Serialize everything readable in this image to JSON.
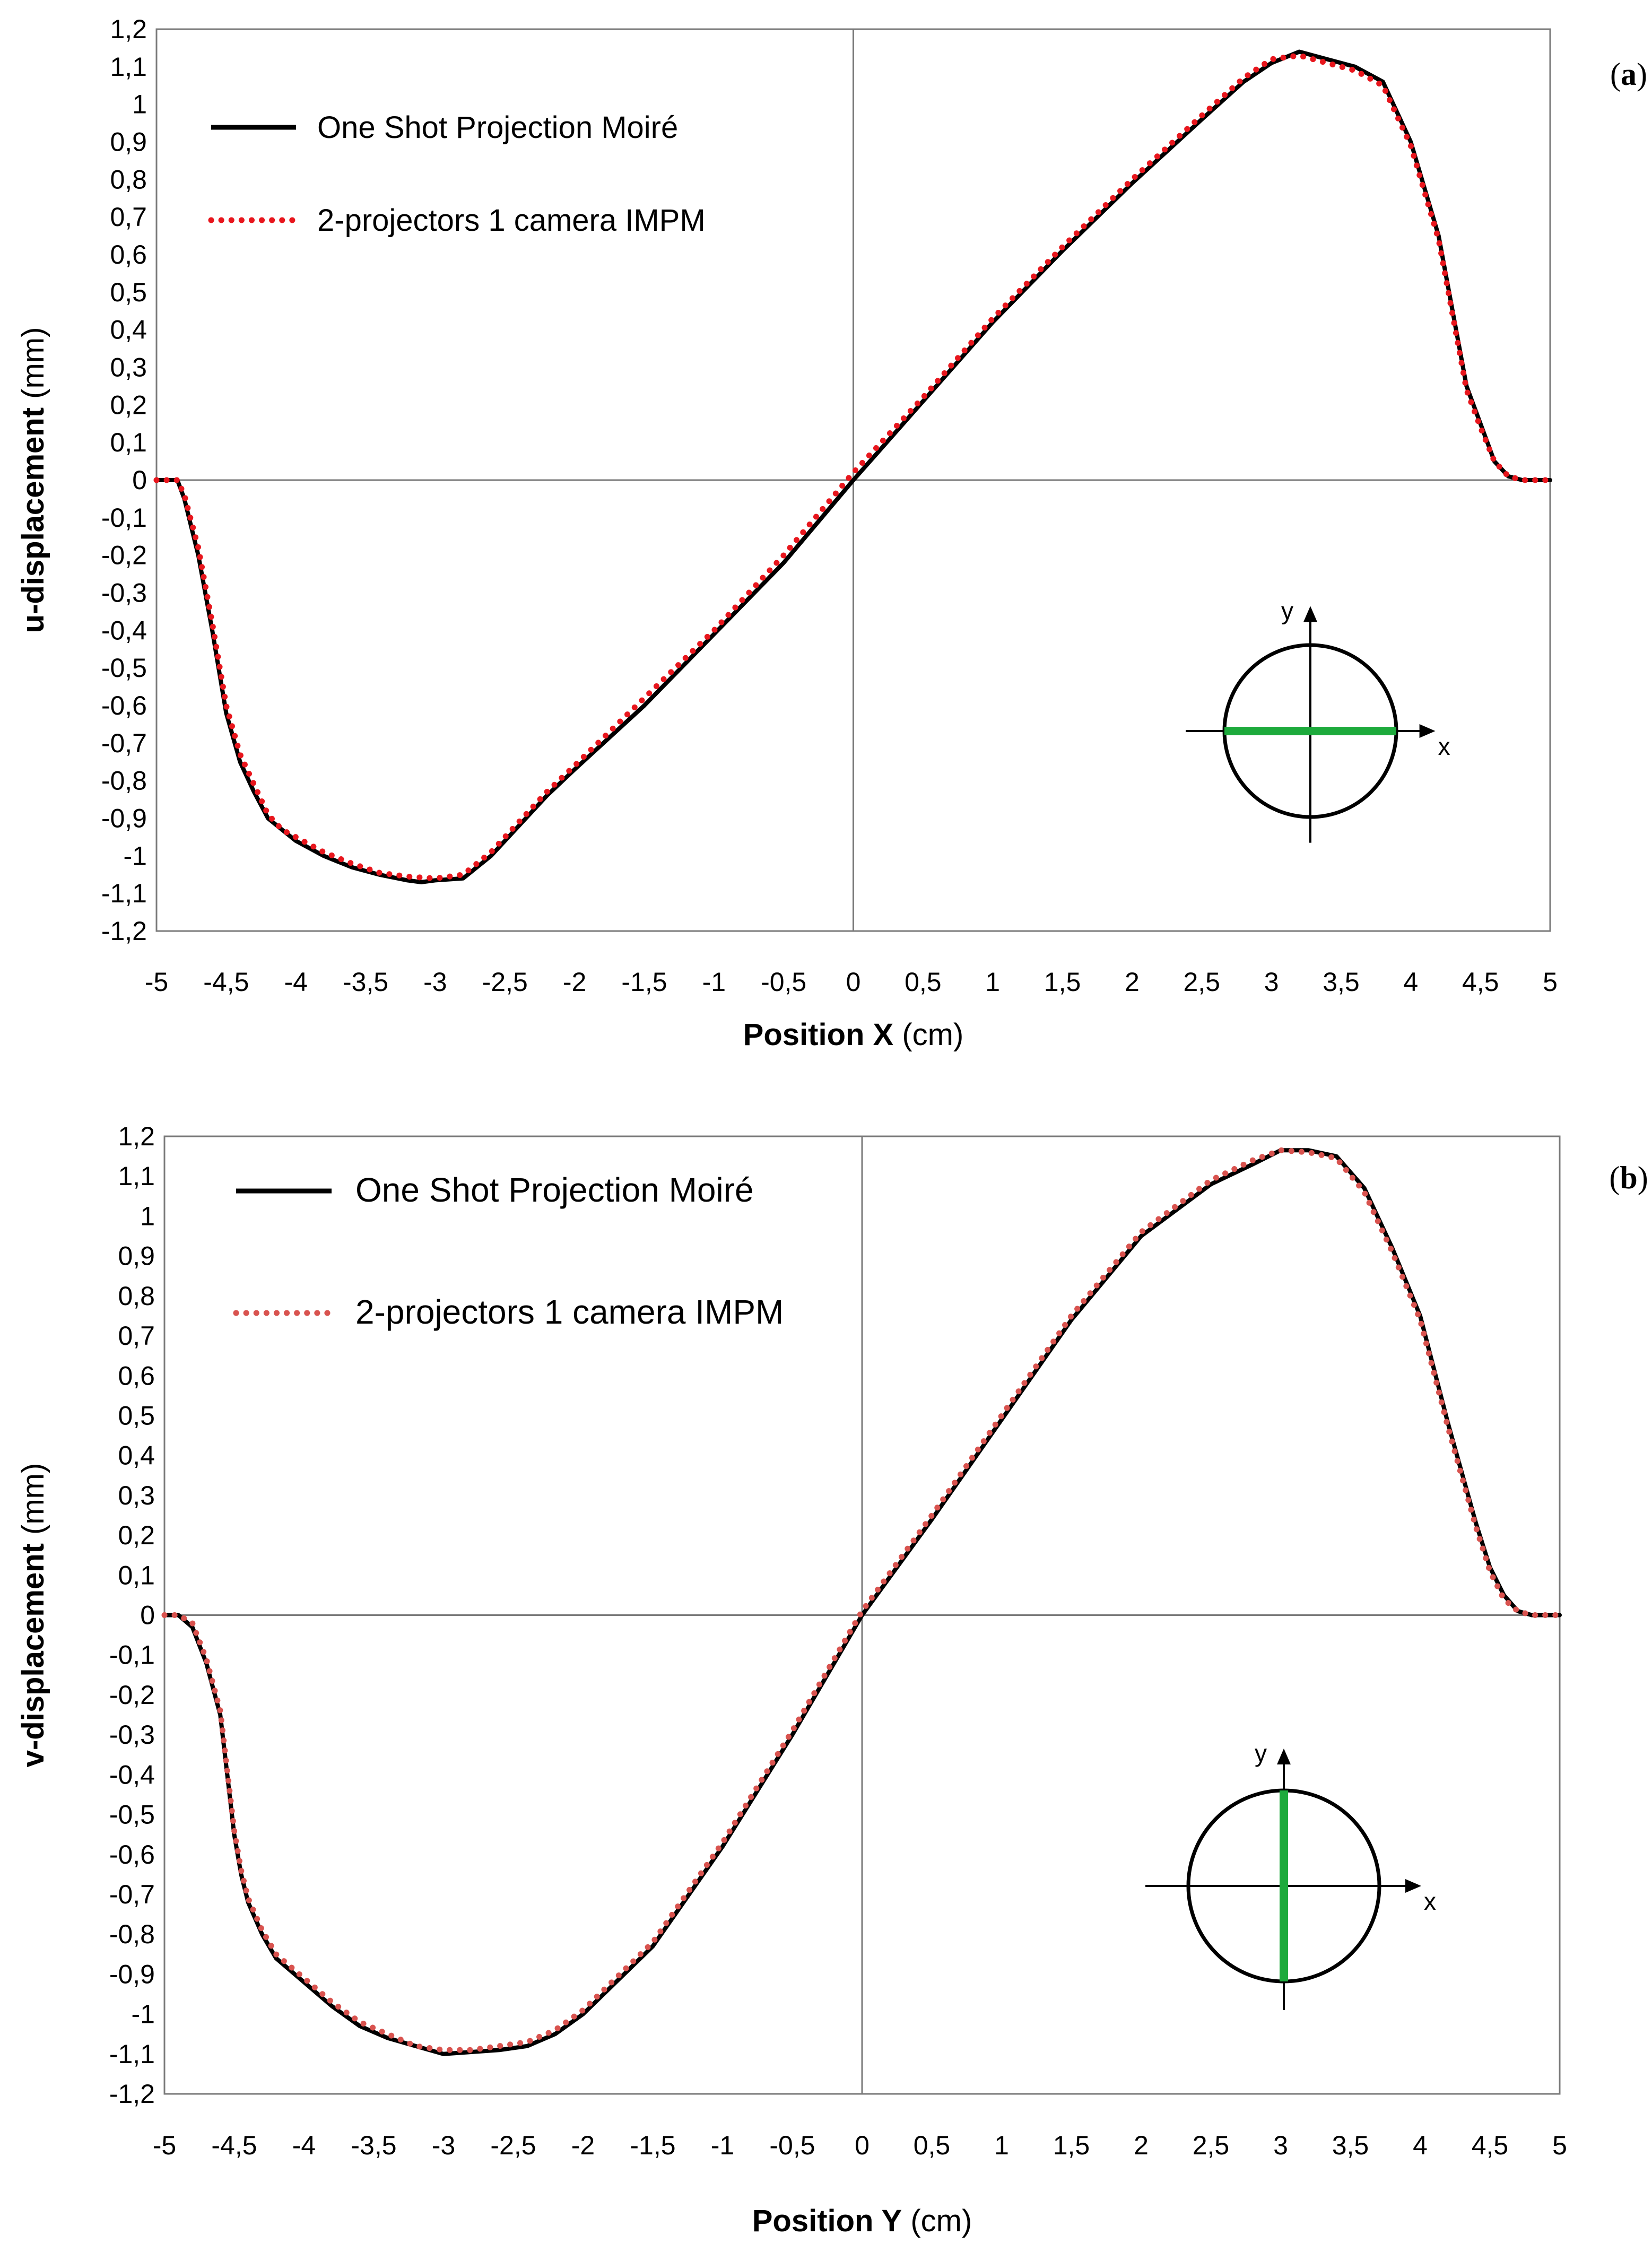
{
  "colors": {
    "osm_line": "#000000",
    "impm_a": "#e8161d",
    "impm_b": "#d9534f",
    "indicator": "#1daa3c",
    "axis": "#7a7a7a"
  },
  "chart_data": [
    {
      "type": "line",
      "panel_label_left": "(",
      "panel_label_letter": "a",
      "panel_label_right": ")",
      "xlabel_bold": "Position X",
      "xlabel_rest": " (cm)",
      "ylabel_bold": "u-displacement",
      "ylabel_rest": " (mm)",
      "xlim": [
        -5,
        5
      ],
      "ylim": [
        -1.2,
        1.2
      ],
      "x_ticks": [
        "-5",
        "-4,5",
        "-4",
        "-3,5",
        "-3",
        "-2,5",
        "-2",
        "-1,5",
        "-1",
        "-0,5",
        "0",
        "0,5",
        "1",
        "1,5",
        "2",
        "2,5",
        "3",
        "3,5",
        "4",
        "4,5",
        "5"
      ],
      "y_ticks": [
        "1,2",
        "1,1",
        "1",
        "0,9",
        "0,8",
        "0,7",
        "0,6",
        "0,5",
        "0,4",
        "0,3",
        "0,2",
        "0,1",
        "0",
        "-0,1",
        "-0,2",
        "-0,3",
        "-0,4",
        "-0,5",
        "-0,6",
        "-0,7",
        "-0,8",
        "-0,9",
        "-1",
        "-1,1",
        "-1,2"
      ],
      "legend": [
        "One Shot Projection Moiré",
        "2-projectors 1 camera IMPM"
      ],
      "legend_position": "top-left",
      "inset": {
        "x_label": "x",
        "y_label": "y",
        "measured_line": "horizontal"
      },
      "series": [
        {
          "name": "One Shot Projection Moiré",
          "style": "solid",
          "x": [
            -5.0,
            -4.85,
            -4.8,
            -4.7,
            -4.6,
            -4.5,
            -4.4,
            -4.3,
            -4.2,
            -4.1,
            -4.0,
            -3.8,
            -3.6,
            -3.4,
            -3.2,
            -3.1,
            -3.0,
            -2.8,
            -2.6,
            -2.4,
            -2.2,
            -2.0,
            -1.5,
            -1.0,
            -0.5,
            0.0,
            0.5,
            1.0,
            1.5,
            2.0,
            2.5,
            2.8,
            3.0,
            3.2,
            3.4,
            3.6,
            3.8,
            4.0,
            4.2,
            4.3,
            4.4,
            4.5,
            4.6,
            4.7,
            4.8,
            4.85,
            5.0
          ],
          "y": [
            0.0,
            0.0,
            -0.05,
            -0.2,
            -0.4,
            -0.62,
            -0.75,
            -0.83,
            -0.9,
            -0.93,
            -0.96,
            -1.0,
            -1.03,
            -1.05,
            -1.065,
            -1.07,
            -1.065,
            -1.06,
            -1.0,
            -0.92,
            -0.84,
            -0.77,
            -0.6,
            -0.41,
            -0.22,
            0.0,
            0.21,
            0.42,
            0.61,
            0.79,
            0.96,
            1.06,
            1.11,
            1.14,
            1.12,
            1.1,
            1.06,
            0.9,
            0.65,
            0.45,
            0.25,
            0.15,
            0.05,
            0.01,
            0.0,
            0.0,
            0.0
          ]
        },
        {
          "name": "2-projectors 1 camera IMPM",
          "style": "dotted",
          "x": [
            -5.0,
            -4.85,
            -4.8,
            -4.7,
            -4.6,
            -4.5,
            -4.4,
            -4.3,
            -4.2,
            -4.1,
            -4.0,
            -3.8,
            -3.6,
            -3.4,
            -3.2,
            -3.0,
            -2.8,
            -2.6,
            -2.4,
            -2.2,
            -2.0,
            -1.5,
            -1.0,
            -0.5,
            0.0,
            0.5,
            1.0,
            1.5,
            2.0,
            2.5,
            2.8,
            3.0,
            3.2,
            3.4,
            3.6,
            3.8,
            4.0,
            4.2,
            4.3,
            4.4,
            4.5,
            4.6,
            4.7,
            4.8,
            4.85,
            5.0
          ],
          "y": [
            0.0,
            0.0,
            -0.04,
            -0.18,
            -0.38,
            -0.6,
            -0.73,
            -0.81,
            -0.89,
            -0.93,
            -0.95,
            -0.99,
            -1.02,
            -1.045,
            -1.055,
            -1.06,
            -1.05,
            -0.99,
            -0.91,
            -0.83,
            -0.76,
            -0.58,
            -0.4,
            -0.2,
            0.02,
            0.22,
            0.43,
            0.62,
            0.8,
            0.97,
            1.07,
            1.12,
            1.13,
            1.11,
            1.09,
            1.05,
            0.89,
            0.64,
            0.44,
            0.24,
            0.14,
            0.05,
            0.01,
            0.0,
            0.0,
            0.0
          ]
        }
      ]
    },
    {
      "type": "line",
      "panel_label_left": "(",
      "panel_label_letter": "b",
      "panel_label_right": ")",
      "xlabel_bold": "Position Y",
      "xlabel_rest": " (cm)",
      "ylabel_bold": "v-displacement",
      "ylabel_rest": " (mm)",
      "xlim": [
        -5,
        5
      ],
      "ylim": [
        -1.2,
        1.2
      ],
      "x_ticks": [
        "-5",
        "-4,5",
        "-4",
        "-3,5",
        "-3",
        "-2,5",
        "-2",
        "-1,5",
        "-1",
        "-0,5",
        "0",
        "0,5",
        "1",
        "1,5",
        "2",
        "2,5",
        "3",
        "3,5",
        "4",
        "4,5",
        "5"
      ],
      "y_ticks": [
        "1,2",
        "1,1",
        "1",
        "0,9",
        "0,8",
        "0,7",
        "0,6",
        "0,5",
        "0,4",
        "0,3",
        "0,2",
        "0,1",
        "0",
        "-0,1",
        "-0,2",
        "-0,3",
        "-0,4",
        "-0,5",
        "-0,6",
        "-0,7",
        "-0,8",
        "-0,9",
        "-1",
        "-1,1",
        "-1,2"
      ],
      "legend": [
        "One Shot Projection Moiré",
        "2-projectors 1 camera IMPM"
      ],
      "legend_position": "top-left",
      "inset": {
        "x_label": "x",
        "y_label": "y",
        "measured_line": "vertical"
      },
      "series": [
        {
          "name": "One Shot Projection Moiré",
          "style": "solid",
          "x": [
            -5.0,
            -4.9,
            -4.8,
            -4.7,
            -4.6,
            -4.55,
            -4.5,
            -4.45,
            -4.4,
            -4.3,
            -4.2,
            -4.0,
            -3.8,
            -3.6,
            -3.4,
            -3.2,
            -3.0,
            -2.8,
            -2.6,
            -2.4,
            -2.2,
            -2.0,
            -1.5,
            -1.0,
            -0.5,
            0.0,
            0.5,
            1.0,
            1.5,
            2.0,
            2.5,
            2.8,
            3.0,
            3.2,
            3.4,
            3.6,
            3.8,
            4.0,
            4.2,
            4.4,
            4.5,
            4.6,
            4.7,
            4.8,
            4.9,
            5.0
          ],
          "y": [
            0.0,
            0.0,
            -0.03,
            -0.12,
            -0.25,
            -0.4,
            -0.55,
            -0.65,
            -0.72,
            -0.8,
            -0.86,
            -0.92,
            -0.98,
            -1.03,
            -1.06,
            -1.08,
            -1.1,
            -1.095,
            -1.09,
            -1.08,
            -1.05,
            -1.0,
            -0.83,
            -0.58,
            -0.3,
            0.0,
            0.24,
            0.49,
            0.74,
            0.95,
            1.08,
            1.13,
            1.165,
            1.165,
            1.15,
            1.07,
            0.92,
            0.75,
            0.48,
            0.23,
            0.12,
            0.05,
            0.01,
            0.0,
            0.0,
            0.0
          ]
        },
        {
          "name": "2-projectors 1 camera IMPM",
          "style": "dotted",
          "x": [
            -5.0,
            -4.9,
            -4.8,
            -4.7,
            -4.6,
            -4.55,
            -4.5,
            -4.45,
            -4.4,
            -4.3,
            -4.2,
            -4.0,
            -3.8,
            -3.6,
            -3.4,
            -3.2,
            -3.0,
            -2.8,
            -2.6,
            -2.4,
            -2.2,
            -2.0,
            -1.5,
            -1.0,
            -0.5,
            0.0,
            0.5,
            1.0,
            1.5,
            2.0,
            2.5,
            2.8,
            3.0,
            3.2,
            3.4,
            3.6,
            3.8,
            4.0,
            4.2,
            4.4,
            4.5,
            4.6,
            4.7,
            4.8,
            4.9,
            5.0
          ],
          "y": [
            0.0,
            0.0,
            -0.02,
            -0.11,
            -0.24,
            -0.39,
            -0.54,
            -0.64,
            -0.71,
            -0.79,
            -0.85,
            -0.91,
            -0.97,
            -1.02,
            -1.05,
            -1.08,
            -1.09,
            -1.09,
            -1.08,
            -1.07,
            -1.04,
            -0.99,
            -0.82,
            -0.57,
            -0.29,
            0.01,
            0.25,
            0.5,
            0.75,
            0.96,
            1.09,
            1.14,
            1.165,
            1.16,
            1.145,
            1.06,
            0.91,
            0.74,
            0.47,
            0.22,
            0.11,
            0.04,
            0.01,
            0.0,
            0.0,
            0.0
          ]
        }
      ]
    }
  ]
}
